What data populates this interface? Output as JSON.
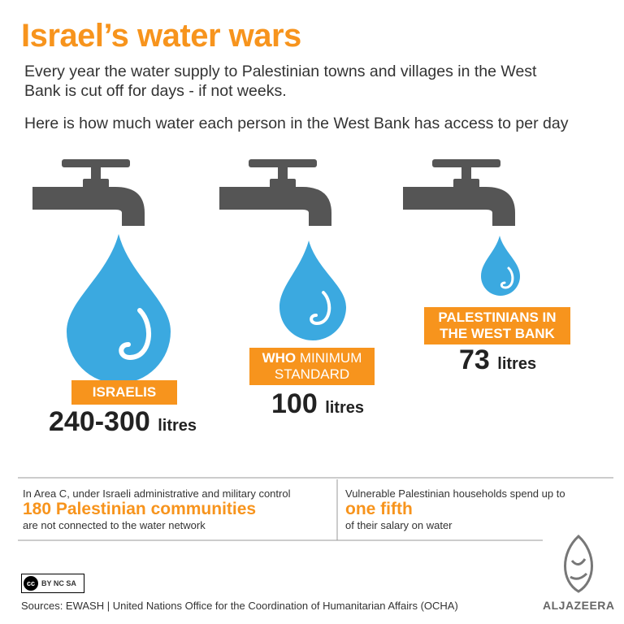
{
  "title": "Israel’s water wars",
  "intro": [
    "Every year the water supply to Palestinian towns and villages in the West Bank is cut off for days - if not weeks.",
    "Here is how much water each person in the West Bank has access to per day"
  ],
  "taps": [
    {
      "label": "ISRAELIS",
      "amount": "240-300",
      "unit": "litres"
    },
    {
      "label_strong": "WHO",
      "label": "MINIMUM STANDARD",
      "amount": "100",
      "unit": "litres"
    },
    {
      "label": "PALESTINIANS IN THE WEST BANK",
      "amount": "73",
      "unit": "litres"
    }
  ],
  "facts": [
    {
      "lead": "In Area C, under Israeli administrative and military control",
      "highlight": "180 Palestinian communities",
      "tail": "are not connected to the water network"
    },
    {
      "lead": "Vulnerable Palestinian households spend up to",
      "highlight": "one fifth",
      "tail": "of their salary on water"
    }
  ],
  "license": {
    "badge": "cc",
    "terms": "BY NC SA"
  },
  "sources": "Sources: EWASH | United Nations Office for the Coordination of Humanitarian Affairs (OCHA)",
  "logo": "ALJAZEERA"
}
